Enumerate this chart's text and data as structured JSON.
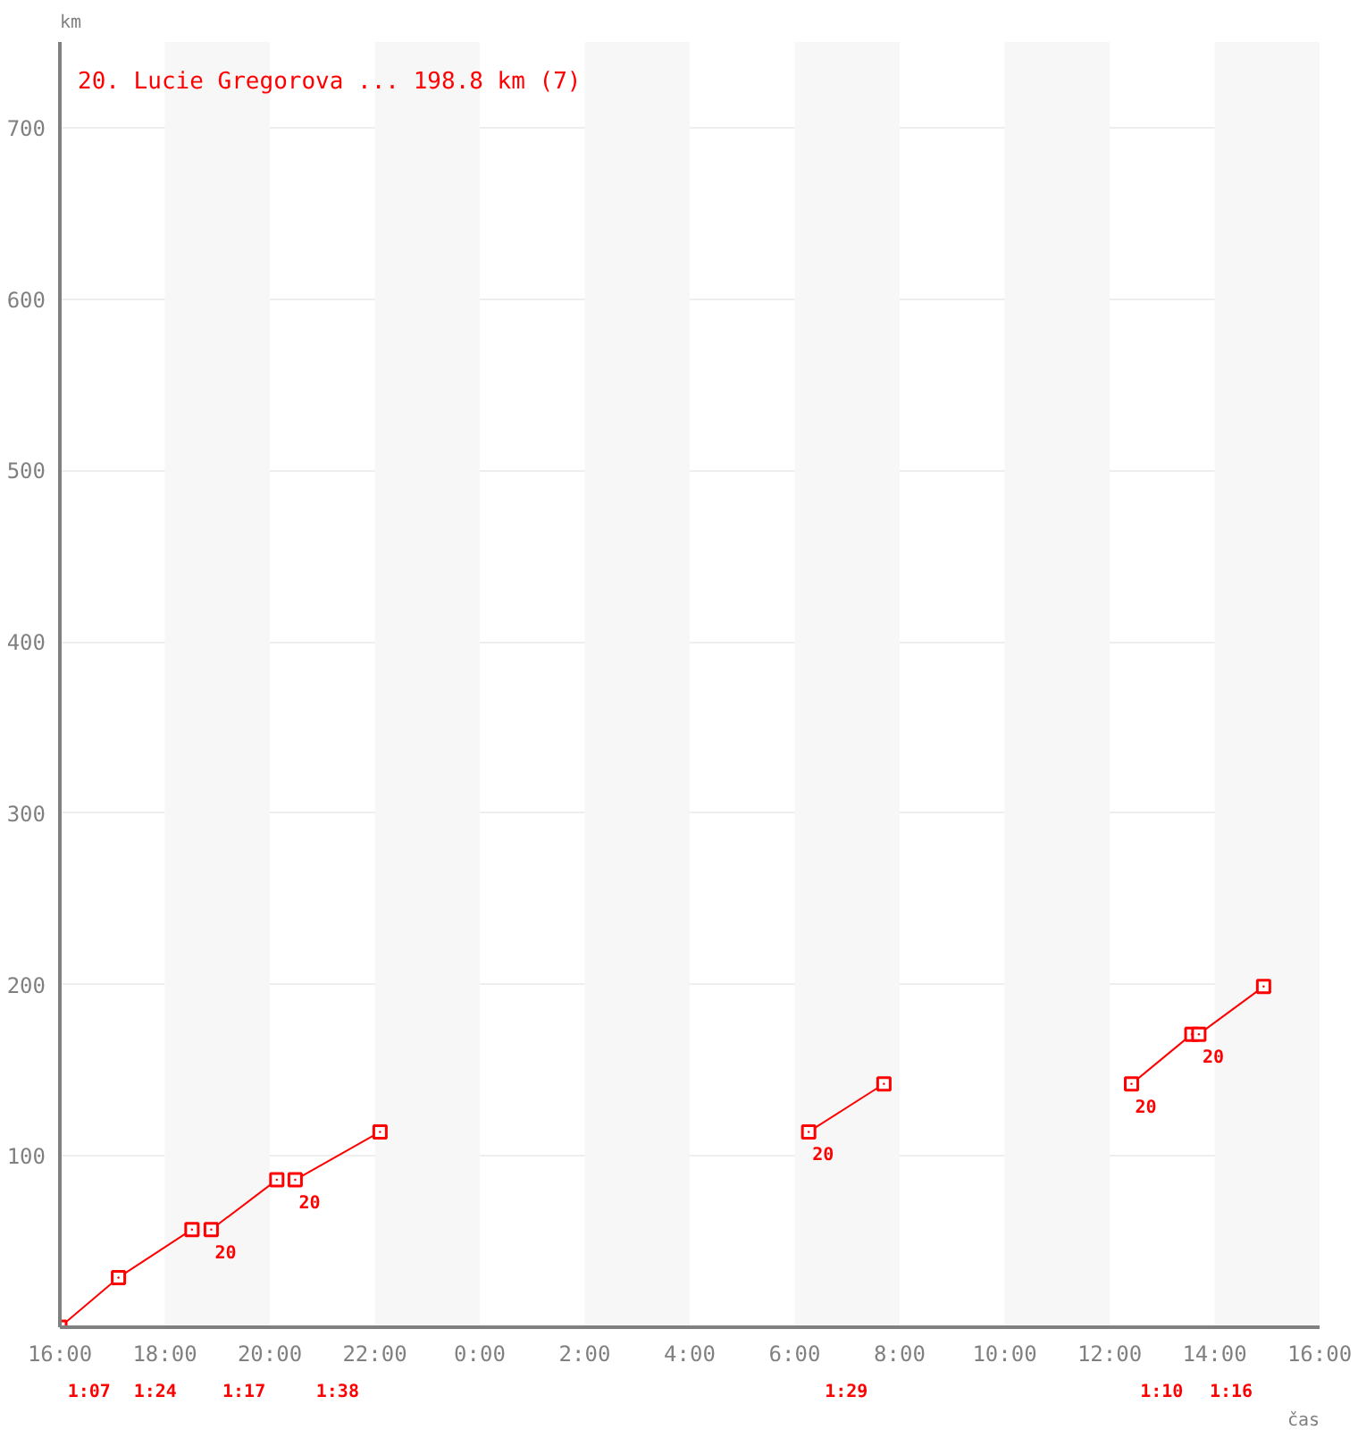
{
  "chart_data": {
    "type": "line",
    "title": "20. Lucie Gregorova ... 198.8 km (7)",
    "ylabel": "km",
    "xlabel": "čas",
    "xlim": [
      "2000-01-01T16:00",
      "2000-01-02T16:00"
    ],
    "ylim": [
      0,
      750
    ],
    "xticks": [
      {
        "value": "2000-01-01T16:00",
        "label": "16:00"
      },
      {
        "value": "2000-01-01T18:00",
        "label": "18:00"
      },
      {
        "value": "2000-01-01T20:00",
        "label": "20:00"
      },
      {
        "value": "2000-01-01T22:00",
        "label": "22:00"
      },
      {
        "value": "2000-01-02T00:00",
        "label": "0:00"
      },
      {
        "value": "2000-01-02T02:00",
        "label": "2:00"
      },
      {
        "value": "2000-01-02T04:00",
        "label": "4:00"
      },
      {
        "value": "2000-01-02T06:00",
        "label": "6:00"
      },
      {
        "value": "2000-01-02T08:00",
        "label": "8:00"
      },
      {
        "value": "2000-01-02T10:00",
        "label": "10:00"
      },
      {
        "value": "2000-01-02T12:00",
        "label": "12:00"
      },
      {
        "value": "2000-01-02T14:00",
        "label": "14:00"
      },
      {
        "value": "2000-01-02T16:00",
        "label": "16:00"
      }
    ],
    "yticks": [
      100,
      200,
      300,
      400,
      500,
      600,
      700
    ],
    "grid": "y",
    "marker": "square",
    "line_style": "solid",
    "bands": [
      {
        "axis": "x",
        "from": "2000-01-01T18:00",
        "to": "2000-01-01T20:00",
        "color": "#f7f7f7"
      },
      {
        "axis": "x",
        "from": "2000-01-01T22:00",
        "to": "2000-01-02T00:00",
        "color": "#f7f7f7"
      },
      {
        "axis": "x",
        "from": "2000-01-02T02:00",
        "to": "2000-01-02T04:00",
        "color": "#f7f7f7"
      },
      {
        "axis": "x",
        "from": "2000-01-02T06:00",
        "to": "2000-01-02T08:00",
        "color": "#f7f7f7"
      },
      {
        "axis": "x",
        "from": "2000-01-02T10:00",
        "to": "2000-01-02T12:00",
        "color": "#f7f7f7"
      },
      {
        "axis": "x",
        "from": "2000-01-02T14:00",
        "to": "2000-01-02T16:00",
        "color": "#f7f7f7"
      }
    ],
    "series": [
      {
        "color": "#ff0000",
        "x": [
          "2000-01-01T16:00",
          "2000-01-01T17:07",
          "2000-01-01T18:31"
        ],
        "values": [
          0,
          29,
          57
        ]
      },
      {
        "color": "#ff0000",
        "x": [
          "2000-01-01T18:53",
          "2000-01-01T20:08"
        ],
        "values": [
          57,
          86
        ]
      },
      {
        "color": "#ff0000",
        "x": [
          "2000-01-01T20:29",
          "2000-01-01T22:06"
        ],
        "values": [
          86,
          114
        ]
      },
      {
        "color": "#ff0000",
        "x": [
          "2000-01-02T06:16",
          "2000-01-02T07:42"
        ],
        "values": [
          114,
          142
        ]
      },
      {
        "color": "#ff0000",
        "x": [
          "2000-01-02T12:25",
          "2000-01-02T13:34"
        ],
        "values": [
          142,
          171
        ]
      },
      {
        "color": "#ff0000",
        "x": [
          "2000-01-02T13:42",
          "2000-01-02T14:56"
        ],
        "values": [
          171,
          198.8
        ]
      }
    ],
    "annotations": [
      {
        "text": "20",
        "x": "2000-01-01T18:53",
        "y": 57
      },
      {
        "text": "20",
        "x": "2000-01-01T20:29",
        "y": 86
      },
      {
        "text": "20",
        "x": "2000-01-02T06:16",
        "y": 114
      },
      {
        "text": "20",
        "x": "2000-01-02T12:25",
        "y": 142
      },
      {
        "text": "20",
        "x": "2000-01-02T13:42",
        "y": 171
      },
      "1:07",
      "1:24",
      "1:17",
      "1:38",
      "1:29",
      "1:10",
      "1:16"
    ]
  }
}
